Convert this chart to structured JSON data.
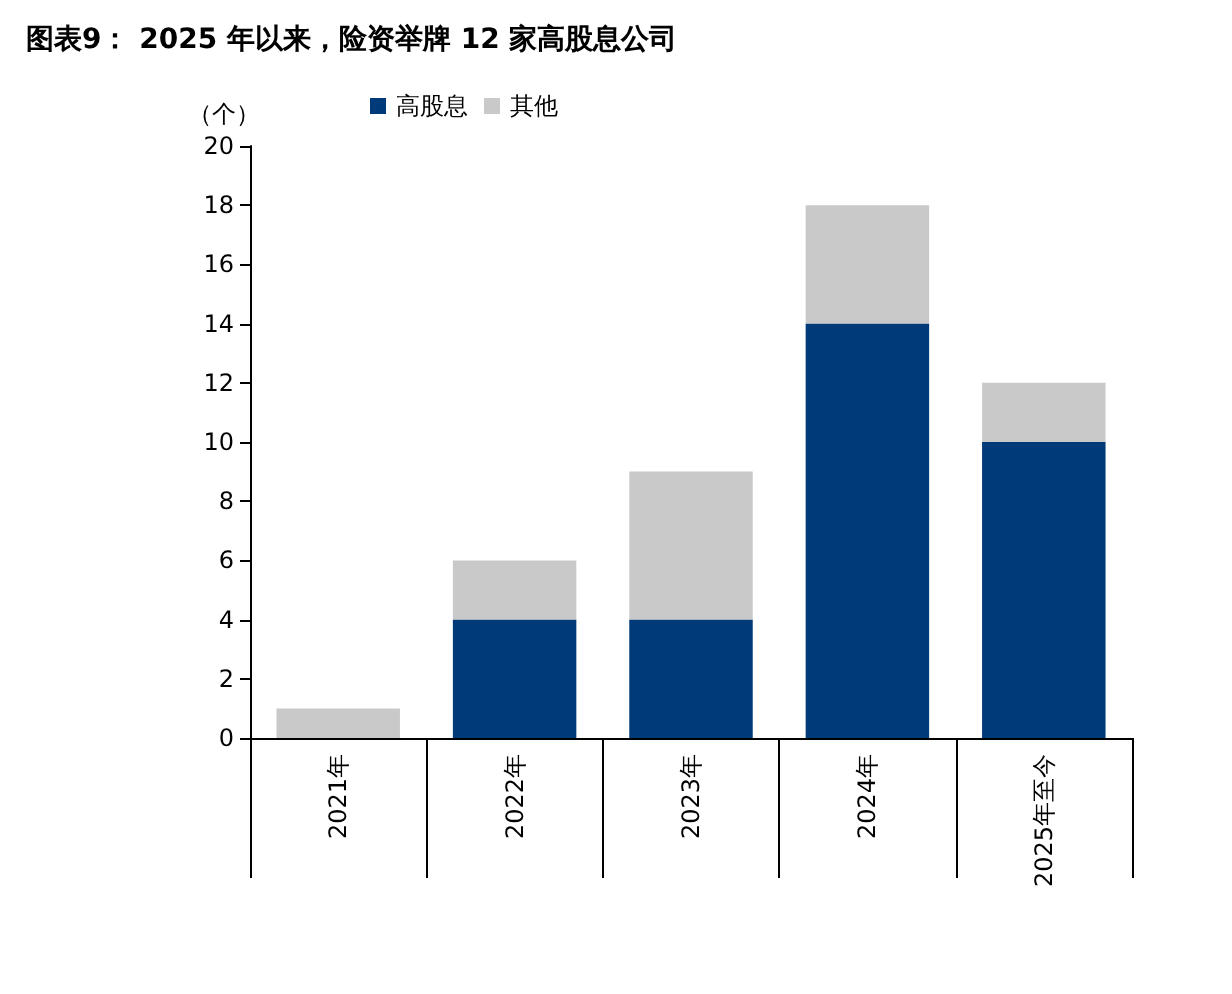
{
  "chart_data": {
    "type": "bar",
    "title": "图表9： 2025 年以来，险资举牌 12 家高股息公司",
    "ylabel": "（个）",
    "categories": [
      "2021年",
      "2022年",
      "2023年",
      "2024年",
      "2025年至今"
    ],
    "series": [
      {
        "name": "高股息",
        "color": "#003a78",
        "values": [
          0,
          4,
          4,
          14,
          10
        ]
      },
      {
        "name": "其他",
        "color": "#c9c9c9",
        "values": [
          1,
          2,
          5,
          4,
          2
        ]
      }
    ],
    "stacked": true,
    "ylim": [
      0,
      20
    ],
    "yticks": [
      0,
      2,
      4,
      6,
      8,
      10,
      12,
      14,
      16,
      18,
      20
    ],
    "grid": false,
    "legend": "top left"
  }
}
